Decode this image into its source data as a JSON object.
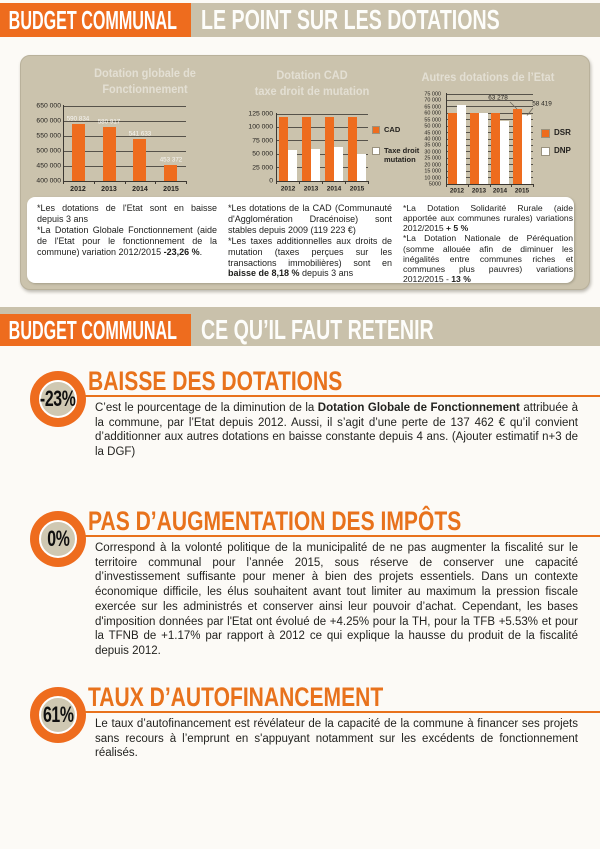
{
  "colors": {
    "accent": "#ee6c1e",
    "tan": "#c9c1ab",
    "panel": "#cbc3ad",
    "white": "#ffffff",
    "grid": "#56524a",
    "text": "#1d1d1b"
  },
  "header1": {
    "badge": "BUDGET COMMUNAL",
    "title": "LE POINT SUR LES DOTATIONS"
  },
  "header2": {
    "badge": "BUDGET COMMUNAL",
    "title": "CE QU’IL FAUT RETENIR"
  },
  "chart_data": [
    {
      "type": "bar",
      "title": "Dotation globale de Fonctionnement",
      "title_lines": [
        "Dotation globale de",
        "Fonctionnement"
      ],
      "categories": [
        "2012",
        "2013",
        "2014",
        "2015"
      ],
      "values": [
        590834,
        580917,
        541633,
        453372
      ],
      "data_labels": [
        "590 834",
        "580 917",
        "541 633",
        "453 372"
      ],
      "ylim": [
        400000,
        650000
      ],
      "yticks": [
        "650 000",
        "600 000",
        "550 000",
        "500 000",
        "450 000",
        "400 000"
      ],
      "bar_color": "#ee6c1e"
    },
    {
      "type": "bar",
      "title": "Dotation CAD taxe droit de mutation",
      "title_lines": [
        "Dotation CAD",
        "taxe droit de mutation"
      ],
      "categories": [
        "2012",
        "2013",
        "2014",
        "2015"
      ],
      "series": [
        {
          "name": "CAD",
          "color": "#ee6c1e",
          "values": [
            119223,
            119223,
            119223,
            119223
          ]
        },
        {
          "name": "Taxe droit mutation",
          "color": "#ffffff",
          "values": [
            57500,
            59500,
            63000,
            50000
          ]
        }
      ],
      "ylim": [
        0,
        125000
      ],
      "yticks": [
        "125 000",
        "100 000",
        "75 000",
        "50 000",
        "25 000",
        "0"
      ]
    },
    {
      "type": "bar",
      "title": "Autres dotations de l’Etat",
      "title_lines": [
        "Autres dotations de l’Etat"
      ],
      "categories": [
        "2012",
        "2013",
        "2014",
        "2015"
      ],
      "series": [
        {
          "name": "DSR",
          "color": "#ee6c1e",
          "values": [
            60000,
            60500,
            60500,
            63278
          ]
        },
        {
          "name": "DNP",
          "color": "#ffffff",
          "values": [
            66500,
            60500,
            54000,
            58419
          ]
        }
      ],
      "ylim": [
        5000,
        75000
      ],
      "yticks": [
        "75 000",
        "70 000",
        "65 000",
        "60 000",
        "55 000",
        "50 000",
        "45 000",
        "40 000",
        "35 000",
        "30 000",
        "25 000",
        "20 000",
        "15 000",
        "10 000",
        "5000"
      ],
      "callouts": [
        {
          "text": "63 278",
          "series": 0
        },
        {
          "text": "58 419",
          "series": 1
        }
      ]
    }
  ],
  "notes": [
    [
      {
        "t": "*Les dotations de l'Etat sont en baisse depuis 3 ans"
      },
      {
        "br": true
      },
      {
        "t": "*La Dotation Globale Fonctionnement (aide de l'Etat pour le fonctionnement de la commune) variation 2012/2015 "
      },
      {
        "t": "-23,26 %",
        "b": true
      },
      {
        "t": "."
      }
    ],
    [
      {
        "t": "*Les dotations de la CAD (Communauté d'Agglomération Dracénoise) sont stables depuis 2009 (119 223 €)"
      },
      {
        "br": true
      },
      {
        "t": "*Les taxes additionnelles aux droits de mutation (taxes perçues sur les transactions immobilières) sont en "
      },
      {
        "t": "baisse de 8,18 %",
        "b": true
      },
      {
        "t": " depuis 3 ans"
      }
    ],
    [
      {
        "t": "*La Dotation Solidarité Rurale (aide apportée aux communes rurales) variations 2012/2015 "
      },
      {
        "t": "+ 5 %",
        "b": true
      },
      {
        "br": true
      },
      {
        "t": "*La Dotation Nationale de Péréquation (somme allouée afin de diminuer les inégalités entre communes riches et communes plus pauvres) variations 2012/2015 - "
      },
      {
        "t": "13 %",
        "b": true
      }
    ]
  ],
  "sections": [
    {
      "badge": "-23%",
      "title": "BAISSE DES DOTATIONS",
      "body": [
        {
          "t": "C’est le pourcentage de la diminution de la "
        },
        {
          "t": "Dotation Globale de Fonctionnement",
          "b": true
        },
        {
          "t": " attribuée à la commune, par l’Etat depuis 2012. Aussi, il s’agit d’une perte de 137 462 € qu’il convient d’additionner aux autres dotations en baisse constante depuis 4 ans. (Ajouter estimatif n+3 de la DGF)"
        }
      ]
    },
    {
      "badge": "0%",
      "title": "PAS D’AUGMENTATION DES IMPÔTS",
      "body": [
        {
          "t": "Correspond à la volonté politique de la municipalité de ne pas augmenter la fiscalité sur le territoire communal pour l’année 2015, sous réserve de conserver une capacité d’investissement suffisante pour mener à bien des projets essentiels. Dans un contexte économique difficile, les élus souhaitent avant tout limiter au maximum la pression fiscale exercée sur les administrés et conserver ainsi leur pouvoir d’achat. Cependant, les bases d'imposition données par l'Etat ont évolué de +4.25% pour la TH, pour la TFB +5.53% et pour la TFNB de +1.17% par rapport à 2012 ce qui explique la hausse du produit de la fiscalité depuis 2012."
        }
      ]
    },
    {
      "badge": "61%",
      "title": "TAUX D’AUTOFINANCEMENT",
      "body": [
        {
          "t": "Le taux d’autofinancement est révélateur de la capacité de la commune à financer ses projets sans recours à l’emprunt en s'appuyant notamment sur les excédents de fonctionnement réalisés."
        }
      ]
    }
  ]
}
